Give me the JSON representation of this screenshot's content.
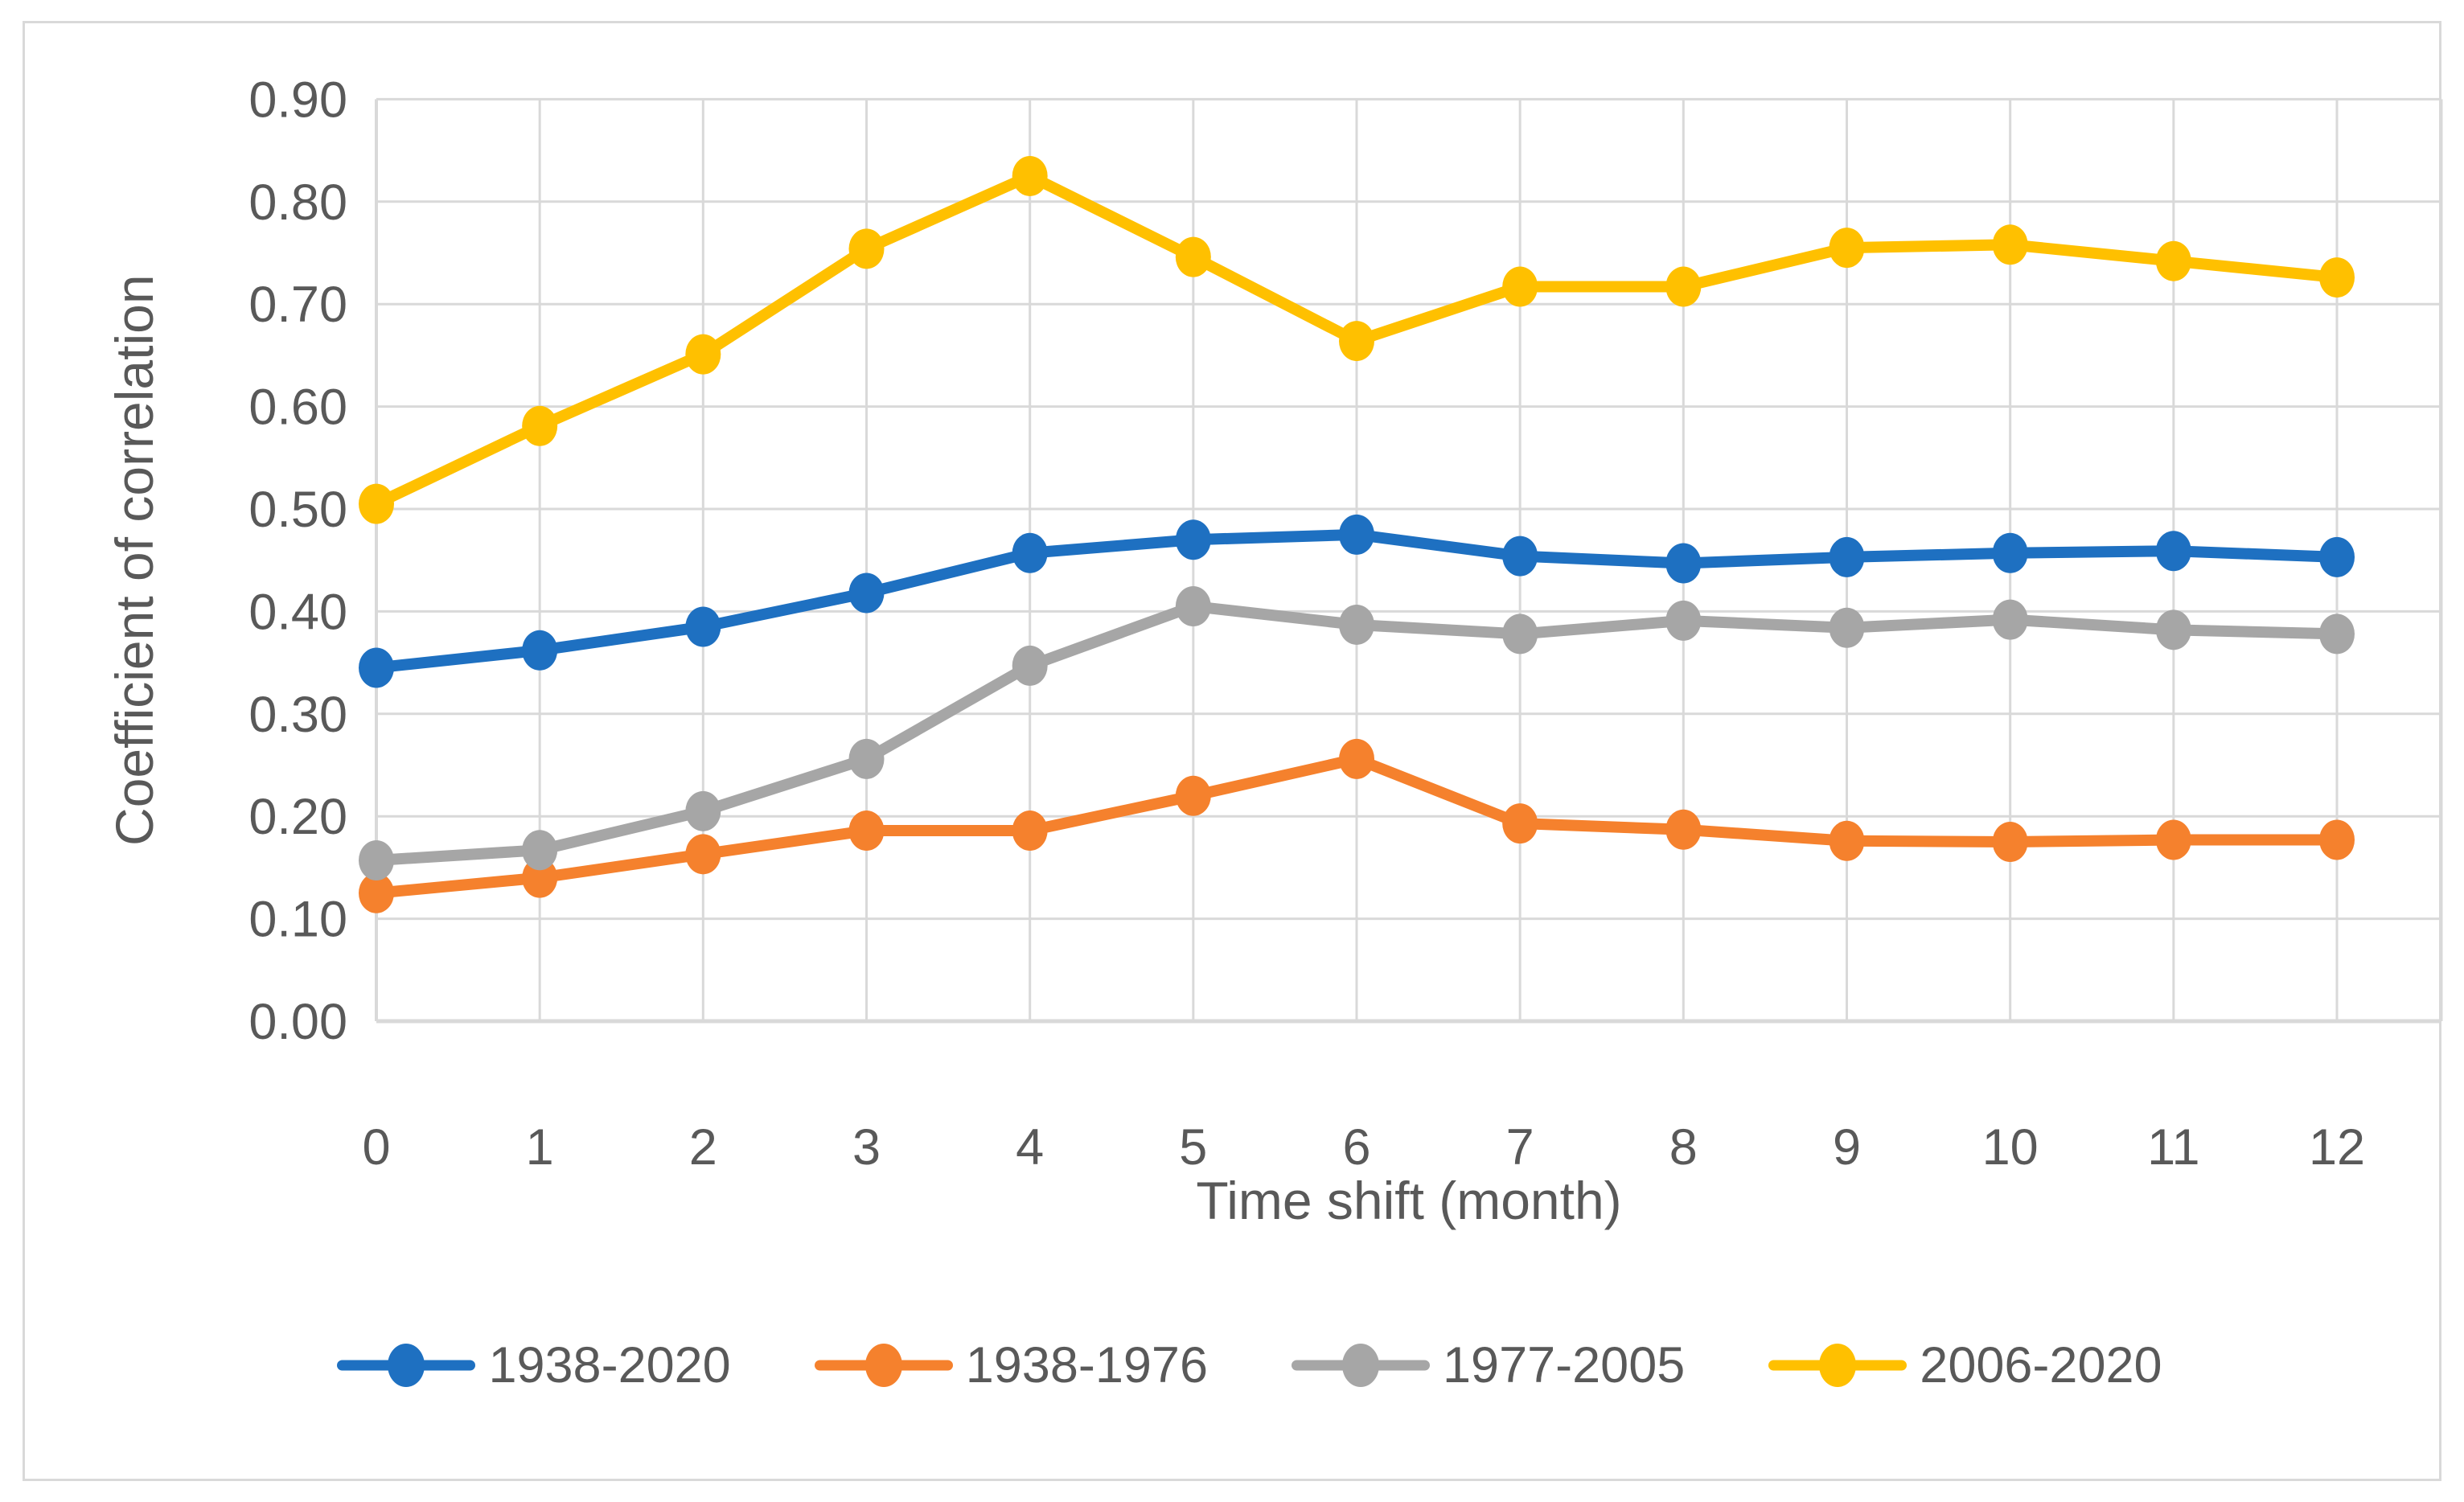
{
  "figure": {
    "background": "#ffffff",
    "frame_color": "#d9d9d9",
    "text_color": "#595959",
    "grid_color": "#d9d9d9",
    "axis_color": "#bfbfbf"
  },
  "chart_data": {
    "type": "line",
    "title": "",
    "xlabel": "Time shift (month)",
    "ylabel": "Coefficient of correlation",
    "x": [
      0,
      1,
      2,
      3,
      4,
      5,
      6,
      7,
      8,
      9,
      10,
      11,
      12
    ],
    "x_tick_labels": [
      "0",
      "1",
      "2",
      "3",
      "4",
      "5",
      "6",
      "7",
      "8",
      "9",
      "10",
      "11",
      "12"
    ],
    "y_tick_labels": [
      "0.00",
      "0.10",
      "0.20",
      "0.30",
      "0.40",
      "0.50",
      "0.60",
      "0.70",
      "0.80",
      "0.90"
    ],
    "xlim": [
      0,
      12
    ],
    "ylim": [
      0.0,
      0.9
    ],
    "y_tick_step": 0.1,
    "grid": true,
    "legend_position": "bottom",
    "marker": "ellipse",
    "series": [
      {
        "name": "1938-2020",
        "color": "#1E70C1",
        "values": [
          0.345,
          0.362,
          0.385,
          0.418,
          0.457,
          0.47,
          0.475,
          0.454,
          0.447,
          0.453,
          0.457,
          0.459,
          0.453
        ]
      },
      {
        "name": "1938-1976",
        "color": "#F5812D",
        "values": [
          0.125,
          0.14,
          0.163,
          0.186,
          0.186,
          0.22,
          0.256,
          0.193,
          0.187,
          0.176,
          0.175,
          0.177,
          0.177
        ]
      },
      {
        "name": "1977-2005",
        "color": "#A6A6A6",
        "values": [
          0.157,
          0.167,
          0.205,
          0.256,
          0.347,
          0.405,
          0.387,
          0.378,
          0.391,
          0.384,
          0.392,
          0.382,
          0.378
        ]
      },
      {
        "name": "2006-2020",
        "color": "#FFC000",
        "values": [
          0.505,
          0.581,
          0.651,
          0.754,
          0.825,
          0.746,
          0.664,
          0.717,
          0.717,
          0.755,
          0.758,
          0.742,
          0.726
        ]
      }
    ]
  }
}
